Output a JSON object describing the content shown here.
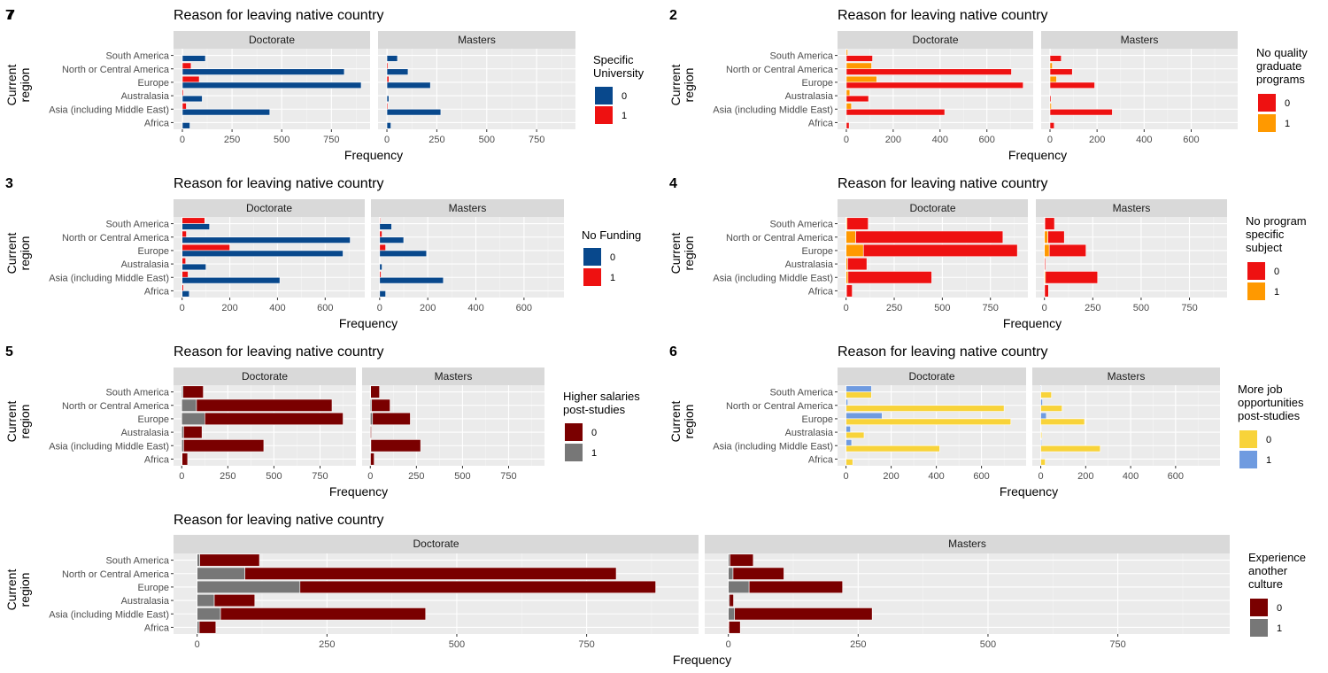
{
  "figure": {
    "regions": [
      "South America",
      "North or Central America",
      "Europe",
      "Australasia",
      "Asia (including Middle East)",
      "Africa"
    ],
    "facets": [
      "Doctorate",
      "Masters"
    ],
    "ylabel": "Current\nregion",
    "xlabel": "Frequency"
  },
  "chart_data": [
    {
      "tag": "7",
      "type": "bar",
      "orientation": "horizontal",
      "position": "dodge",
      "title": "Reason for leaving native country",
      "legend_title": "Specific\nUniversity",
      "levels": [
        "0",
        "1"
      ],
      "colors": [
        "#08488c",
        "#ee1111"
      ],
      "xlim": [
        0,
        900
      ],
      "xticks": [
        0,
        250,
        500,
        750
      ],
      "facet_data": {
        "Doctorate": {
          "0": [
            116,
            815,
            900,
            100,
            440,
            38
          ],
          "1": [
            2,
            44,
            85,
            6,
            20,
            2
          ]
        },
        "Masters": {
          "0": [
            53,
            106,
            218,
            10,
            270,
            20
          ],
          "1": [
            2,
            6,
            10,
            1,
            5,
            1
          ]
        }
      }
    },
    {
      "tag": "2",
      "type": "bar",
      "orientation": "horizontal",
      "position": "dodge",
      "title": "Reason for leaving native country",
      "legend_title": "No quality\ngraduate\nprograms",
      "levels": [
        "0",
        "1"
      ],
      "colors": [
        "#ee1111",
        "#ff9900"
      ],
      "xlim": [
        0,
        760
      ],
      "xticks": [
        0,
        200,
        400,
        600
      ],
      "facet_data": {
        "Doctorate": {
          "0": [
            112,
            705,
            755,
            95,
            420,
            12
          ],
          "1": [
            6,
            108,
            130,
            15,
            22,
            2
          ]
        },
        "Masters": {
          "0": [
            48,
            95,
            190,
            5,
            265,
            18
          ],
          "1": [
            2,
            10,
            28,
            1,
            6,
            1
          ]
        }
      }
    },
    {
      "tag": "3",
      "type": "bar",
      "orientation": "horizontal",
      "position": "dodge",
      "title": "Reason for leaving native country",
      "legend_title": "No Funding",
      "levels": [
        "0",
        "1"
      ],
      "colors": [
        "#08488c",
        "#ee1111"
      ],
      "xlim": [
        0,
        730
      ],
      "xticks": [
        0,
        200,
        400,
        600
      ],
      "facet_data": {
        "Doctorate": {
          "0": [
            115,
            705,
            675,
            100,
            410,
            30
          ],
          "1": [
            95,
            18,
            200,
            15,
            25,
            6
          ]
        },
        "Masters": {
          "0": [
            50,
            100,
            195,
            10,
            265,
            25
          ],
          "1": [
            3,
            10,
            25,
            2,
            6,
            1
          ]
        }
      }
    },
    {
      "tag": "4",
      "type": "bar",
      "orientation": "horizontal",
      "position": "stack",
      "title": "Reason for leaving native country",
      "legend_title": "No program\nspecific\nsubject",
      "levels": [
        "0",
        "1"
      ],
      "colors": [
        "#ee1111",
        "#ff9900"
      ],
      "xlim": [
        0,
        900
      ],
      "xticks": [
        0,
        250,
        500,
        750
      ],
      "facet_data": {
        "Doctorate": {
          "0": [
            110,
            765,
            800,
            100,
            435,
            30
          ],
          "1": [
            5,
            50,
            90,
            8,
            10,
            2
          ]
        },
        "Masters": {
          "0": [
            50,
            85,
            190,
            5,
            270,
            20
          ],
          "1": [
            2,
            18,
            25,
            1,
            5,
            1
          ]
        }
      }
    },
    {
      "tag": "5",
      "type": "bar",
      "orientation": "horizontal",
      "position": "stack",
      "title": "Reason for leaving native country",
      "legend_title": "Higher salaries\npost-studies",
      "levels": [
        "0",
        "1"
      ],
      "colors": [
        "#7a0000",
        "#777777"
      ],
      "xlim": [
        0,
        900
      ],
      "xticks": [
        0,
        250,
        500,
        750
      ],
      "facet_data": {
        "Doctorate": {
          "0": [
            110,
            735,
            750,
            100,
            435,
            30
          ],
          "1": [
            7,
            80,
            125,
            10,
            10,
            2
          ]
        },
        "Masters": {
          "0": [
            48,
            100,
            205,
            5,
            270,
            20
          ],
          "1": [
            2,
            7,
            12,
            1,
            3,
            1
          ]
        }
      }
    },
    {
      "tag": "6",
      "type": "bar",
      "orientation": "horizontal",
      "position": "dodge",
      "title": "Reason for leaving native country",
      "legend_title": "More job\nopportunities\npost-studies",
      "levels": [
        "0",
        "1"
      ],
      "colors": [
        "#f8d33a",
        "#6f9be0"
      ],
      "xlim": [
        0,
        760
      ],
      "xticks": [
        0,
        200,
        400,
        600
      ],
      "facet_data": {
        "Doctorate": {
          "0": [
            113,
            700,
            730,
            80,
            415,
            30
          ],
          "1": [
            113,
            8,
            160,
            20,
            25,
            2
          ]
        },
        "Masters": {
          "0": [
            48,
            95,
            195,
            5,
            265,
            20
          ],
          "1": [
            3,
            8,
            25,
            2,
            4,
            1
          ]
        }
      }
    },
    {
      "tag": "",
      "type": "bar",
      "orientation": "horizontal",
      "position": "stack",
      "title": "Reason for leaving native country",
      "legend_title": "Experience\nanother\nculture",
      "levels": [
        "0",
        "1"
      ],
      "colors": [
        "#7a0000",
        "#777777"
      ],
      "xlim": [
        0,
        920
      ],
      "xticks": [
        0,
        250,
        500,
        750
      ],
      "facet_data": {
        "Doctorate": {
          "0": [
            115,
            715,
            685,
            78,
            395,
            32
          ],
          "1": [
            5,
            92,
            198,
            33,
            45,
            4
          ]
        },
        "Masters": {
          "0": [
            45,
            98,
            180,
            8,
            265,
            22
          ],
          "1": [
            3,
            9,
            40,
            2,
            12,
            1
          ]
        }
      }
    }
  ]
}
